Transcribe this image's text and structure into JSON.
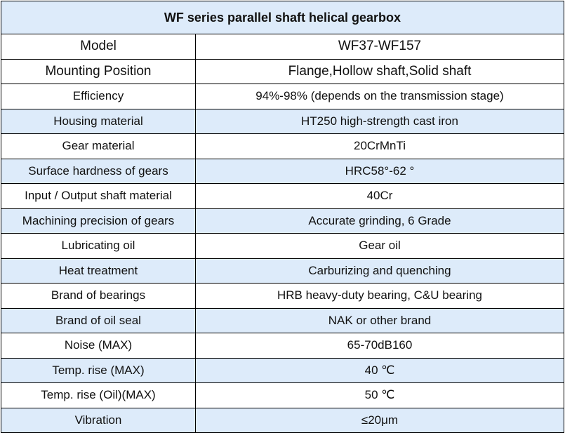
{
  "title": "WF series parallel shaft helical gearbox",
  "colors": {
    "header_bg": "#ddebfa",
    "alt_row_bg": "#ddebfa",
    "border": "#000000"
  },
  "rows": [
    {
      "label": "Model",
      "value": "WF37-WF157"
    },
    {
      "label": "Mounting Position",
      "value": "Flange,Hollow shaft,Solid shaft"
    },
    {
      "label": "Efficiency",
      "value": "94%-98% (depends on the transmission stage)"
    },
    {
      "label": "Housing material",
      "value": "HT250 high-strength cast iron"
    },
    {
      "label": "Gear material",
      "value": "20CrMnTi"
    },
    {
      "label": "Surface hardness of gears",
      "value": "HRC58°-62 °"
    },
    {
      "label": "Input / Output shaft material",
      "value": "40Cr"
    },
    {
      "label": "Machining precision of gears",
      "value": "Accurate grinding, 6 Grade"
    },
    {
      "label": "Lubricating oil",
      "value": "Gear oil"
    },
    {
      "label": "Heat treatment",
      "value": "Carburizing and quenching"
    },
    {
      "label": "Brand of bearings",
      "value": "HRB heavy-duty bearing, C&U bearing"
    },
    {
      "label": "Brand of oil seal",
      "value": "NAK or other brand"
    },
    {
      "label": "Noise (MAX)",
      "value": "65-70dB160"
    },
    {
      "label": "Temp. rise (MAX)",
      "value": "40 ℃"
    },
    {
      "label": "Temp. rise (Oil)(MAX)",
      "value": "50 ℃"
    },
    {
      "label": "Vibration",
      "value": "≤20μm"
    }
  ]
}
